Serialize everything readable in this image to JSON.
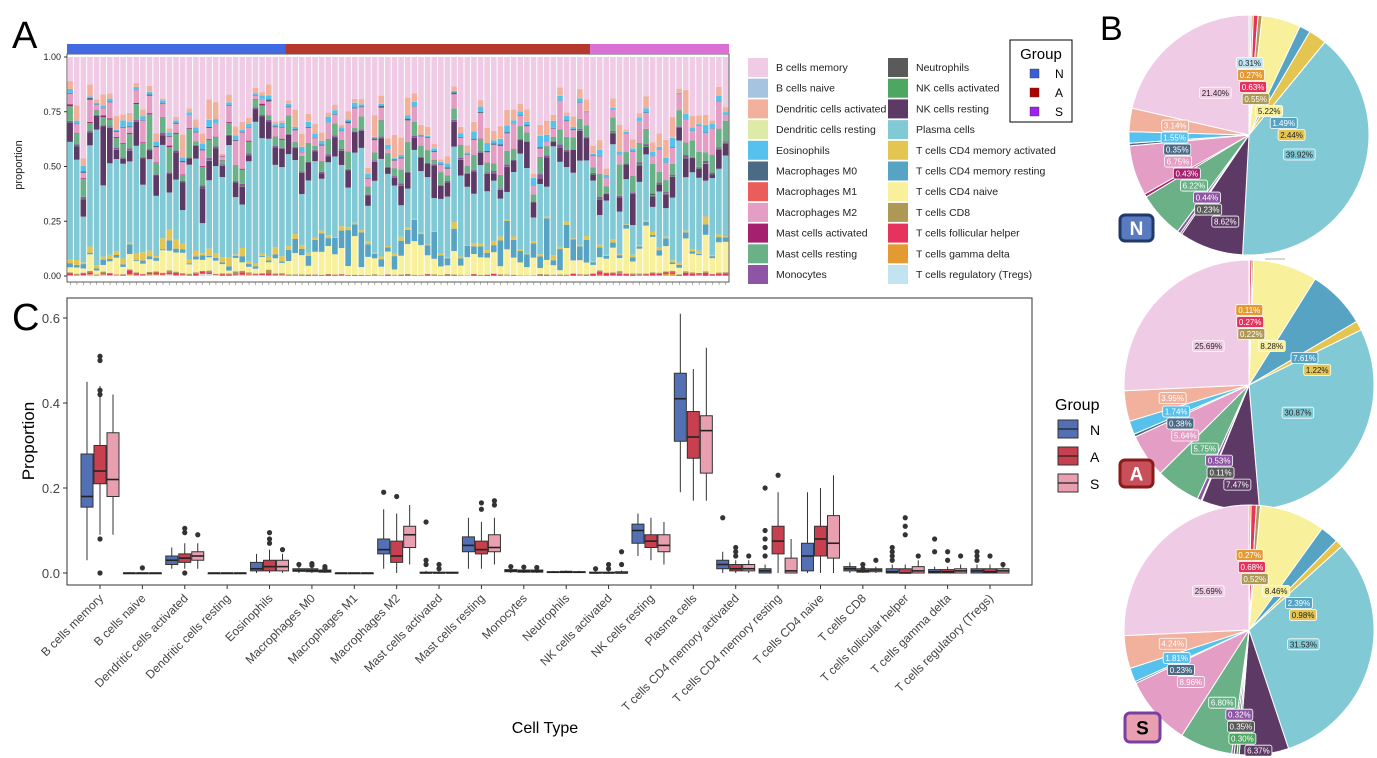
{
  "panel_letters": {
    "a": "A",
    "b": "B",
    "c": "C"
  },
  "cell_types": [
    "B cells memory",
    "B cells naive",
    "Dendritic cells activated",
    "Dendritic cells resting",
    "Eosinophils",
    "Macrophages M0",
    "Macrophages M1",
    "Macrophages M2",
    "Mast cells activated",
    "Mast cells resting",
    "Monocytes",
    "Neutrophils",
    "NK cells activated",
    "NK cells resting",
    "Plasma cells",
    "T cells CD4 memory activated",
    "T cells CD4 memory resting",
    "T cells CD4 naive",
    "T cells CD8",
    "T cells follicular helper",
    "T cells gamma delta",
    "T cells regulatory (Tregs)"
  ],
  "cell_colors": [
    "#F0CBE5",
    "#A6C3E0",
    "#F2B19C",
    "#DDEAA8",
    "#57C1EE",
    "#4B6A86",
    "#EB5D5B",
    "#E49DC4",
    "#A5206E",
    "#6AB187",
    "#8E55A5",
    "#5A5A5A",
    "#4EA760",
    "#5D3966",
    "#82C9D6",
    "#E4C552",
    "#56A3C4",
    "#F8F09A",
    "#AE9856",
    "#E5335E",
    "#E39A33",
    "#C2E3F0"
  ],
  "group_legend_a": {
    "title": "Group",
    "items": [
      {
        "label": "N",
        "color": "#3A5FD8"
      },
      {
        "label": "A",
        "color": "#B00000"
      },
      {
        "label": "S",
        "color": "#A020F0"
      }
    ]
  },
  "chart_data": [
    {
      "panel": "A",
      "type": "bar",
      "stacked": true,
      "ylabel": "proportion",
      "ylim": [
        0,
        1
      ],
      "yticks": [
        "0.00",
        "0.25",
        "0.50",
        "0.75",
        "1.00"
      ],
      "group_bar_colors": {
        "N": "#4169E1",
        "A": "#B5382C",
        "S": "#DA70D6"
      },
      "groups": [
        {
          "name": "N",
          "samples": 33
        },
        {
          "name": "A",
          "samples": 46
        },
        {
          "name": "S",
          "samples": 21
        }
      ],
      "legend_placement": "right"
    },
    {
      "panel": "B",
      "type": "pie",
      "pies": [
        {
          "group": "N",
          "badge_bg": "#5A7AC0",
          "badge_border": "#1F3A6A",
          "badge_text_color": "#ffffff",
          "values": {
            "B cells memory": 21.4,
            "Dendritic cells activated": 3.14,
            "Eosinophils": 1.55,
            "Macrophages M0": 0.35,
            "Macrophages M2": 6.75,
            "Mast cells activated": 0.43,
            "Mast cells resting": 6.22,
            "Monocytes": 0.44,
            "Neutrophils": 0.23,
            "NK cells resting": 8.62,
            "Plasma cells": 39.92,
            "T cells CD4 memory activated": 2.44,
            "T cells CD4 memory resting": 1.49,
            "T cells CD4 naive": 5.22,
            "T cells CD8": 0.55,
            "T cells follicular helper": 0.63,
            "T cells gamma delta": 0.27,
            "T cells regulatory (Tregs)": 0.31
          },
          "labels": {
            "B cells memory": "21.40%",
            "Dendritic cells activated": "3.14%",
            "Eosinophils": "1.55%",
            "Macrophages M0": "0.35%",
            "Macrophages M2": "6.75%",
            "Mast cells activated": "0.43%",
            "Mast cells resting": "6.22%",
            "Monocytes": "0.44%",
            "Neutrophils": "0.23%",
            "NK cells resting": "8.62%",
            "Plasma cells": "39.92%",
            "T cells CD4 memory activated": "2.44%",
            "T cells CD4 memory resting": "1.49%",
            "T cells CD4 naive": "5.22%",
            "T cells CD8": "0.55%",
            "T cells follicular helper": "0.63%",
            "T cells gamma delta": "0.27%",
            "T cells regulatory (Tregs)": "0.31%"
          }
        },
        {
          "group": "A",
          "badge_bg": "#C8505A",
          "badge_border": "#8B1A1A",
          "badge_text_color": "#ffffff",
          "values": {
            "B cells memory": 25.69,
            "Dendritic cells activated": 3.95,
            "Eosinophils": 1.74,
            "Macrophages M0": 0.38,
            "Macrophages M2": 5.64,
            "Mast cells resting": 5.75,
            "Monocytes": 0.53,
            "Neutrophils": 0.11,
            "NK cells resting": 7.47,
            "Plasma cells": 30.87,
            "T cells CD4 memory activated": 1.22,
            "T cells CD4 memory resting": 7.61,
            "T cells CD4 naive": 8.28,
            "T cells CD8": 0.22,
            "T cells follicular helper": 0.27,
            "T cells gamma delta": 0.11
          },
          "labels": {
            "B cells memory": "25.69%",
            "Dendritic cells activated": "3.95%",
            "Eosinophils": "1.74%",
            "Macrophages M0": "0.38%",
            "Macrophages M2": "5.64%",
            "Mast cells resting": "5.75%",
            "Monocytes": "0.53%",
            "Neutrophils": "0.11%",
            "NK cells resting": "7.47%",
            "Plasma cells": "30.87%",
            "T cells CD4 memory activated": "1.22%",
            "T cells CD4 memory resting": "7.61%",
            "T cells CD4 naive": "8.28%",
            "T cells CD8": "0.22%",
            "T cells follicular helper": "0.27%",
            "T cells gamma delta": "0.11%"
          }
        },
        {
          "group": "S",
          "badge_bg": "#E8A0B0",
          "badge_border": "#7B3FA0",
          "badge_text_color": "#000000",
          "values": {
            "B cells memory": 25.69,
            "Dendritic cells activated": 4.24,
            "Eosinophils": 1.81,
            "Macrophages M0": 0.23,
            "Macrophages M2": 8.96,
            "Mast cells resting": 6.8,
            "Monocytes": 0.32,
            "Neutrophils": 0.35,
            "NK cells activated": 0.3,
            "NK cells resting": 6.37,
            "Plasma cells": 31.53,
            "T cells CD4 memory activated": 0.98,
            "T cells CD4 memory resting": 2.39,
            "T cells CD4 naive": 8.46,
            "T cells CD8": 0.52,
            "T cells follicular helper": 0.68,
            "T cells gamma delta": 0.27
          },
          "labels": {
            "B cells memory": "25.69%",
            "Dendritic cells activated": "4.24%",
            "Eosinophils": "1.81%",
            "Macrophages M0": "0.23%",
            "Macrophages M2": "8.96%",
            "Mast cells resting": "6.80%",
            "Monocytes": "0.32%",
            "Neutrophils": "0.35%",
            "NK cells activated": "0.30%",
            "NK cells resting": "6.37%",
            "Plasma cells": "31.53%",
            "T cells CD4 memory activated": "0.98%",
            "T cells CD4 memory resting": "2.39%",
            "T cells CD4 naive": "8.46%",
            "T cells CD8": "0.52%",
            "T cells follicular helper": "0.68%",
            "T cells gamma delta": "0.27%"
          }
        }
      ]
    },
    {
      "panel": "C",
      "type": "box",
      "xlabel": "Cell Type",
      "ylabel": "Proportion",
      "ylim": [
        0,
        0.62
      ],
      "yticks": [
        "0.0",
        "0.2",
        "0.4",
        "0.6"
      ],
      "legend": {
        "title": "Group",
        "placement": "right",
        "items": [
          {
            "label": "N",
            "color": "#5470B4"
          },
          {
            "label": "A",
            "color": "#C8404F"
          },
          {
            "label": "S",
            "color": "#E8A0B0"
          }
        ]
      },
      "boxes_format": "[whisker_low, q1, median, q3, whisker_high, [outliers]]",
      "boxes": [
        {
          "N": [
            0.03,
            0.155,
            0.18,
            0.28,
            0.45,
            []
          ],
          "A": [
            0.09,
            0.21,
            0.24,
            0.3,
            0.44,
            [
              0.51,
              0.5,
              0.43,
              0.42,
              0.08,
              0.0
            ]
          ],
          "S": [
            0.09,
            0.18,
            0.22,
            0.33,
            0.42,
            []
          ]
        },
        {
          "N": [
            0,
            0,
            0,
            0,
            0,
            []
          ],
          "A": [
            0,
            0,
            0,
            0,
            0,
            [
              0.012
            ]
          ],
          "S": [
            0,
            0,
            0,
            0,
            0,
            []
          ]
        },
        {
          "N": [
            0.01,
            0.02,
            0.03,
            0.04,
            0.06,
            []
          ],
          "A": [
            0.01,
            0.025,
            0.035,
            0.045,
            0.07,
            [
              0.105,
              0.095,
              0.0
            ]
          ],
          "S": [
            0.01,
            0.03,
            0.04,
            0.05,
            0.07,
            [
              0.09
            ]
          ]
        },
        {
          "N": [
            0,
            0,
            0,
            0,
            0,
            []
          ],
          "A": [
            0,
            0,
            0,
            0,
            0,
            []
          ],
          "S": [
            0,
            0,
            0,
            0,
            0,
            []
          ]
        },
        {
          "N": [
            0,
            0.005,
            0.01,
            0.025,
            0.045,
            []
          ],
          "A": [
            0,
            0.005,
            0.015,
            0.03,
            0.055,
            [
              0.095,
              0.08,
              0.07
            ]
          ],
          "S": [
            0,
            0.005,
            0.015,
            0.03,
            0.045,
            [
              0.055
            ]
          ]
        },
        {
          "N": [
            0,
            0.004,
            0.006,
            0.01,
            0.015,
            [
              0.02
            ]
          ],
          "A": [
            0,
            0.003,
            0.006,
            0.01,
            0.015,
            [
              0.022,
              0.018
            ]
          ],
          "S": [
            0,
            0.002,
            0.004,
            0.007,
            0.01,
            [
              0.015,
              0.01
            ]
          ]
        },
        {
          "N": [
            0,
            0,
            0,
            0,
            0,
            []
          ],
          "A": [
            0,
            0,
            0,
            0,
            0,
            []
          ],
          "S": [
            0,
            0,
            0,
            0,
            0,
            []
          ]
        },
        {
          "N": [
            0.01,
            0.045,
            0.055,
            0.08,
            0.15,
            [
              0.19
            ]
          ],
          "A": [
            0,
            0.025,
            0.04,
            0.075,
            0.14,
            [
              0.18
            ]
          ],
          "S": [
            0.02,
            0.06,
            0.09,
            0.11,
            0.16,
            []
          ]
        },
        {
          "N": [
            0,
            0,
            0,
            0.002,
            0.005,
            [
              0.12,
              0.03,
              0.02
            ]
          ],
          "A": [
            0,
            0,
            0,
            0.002,
            0.004,
            [
              0.02,
              0.01
            ]
          ],
          "S": [
            0,
            0,
            0,
            0.002,
            0.003,
            []
          ]
        },
        {
          "N": [
            0.01,
            0.05,
            0.065,
            0.085,
            0.13,
            []
          ],
          "A": [
            0.01,
            0.045,
            0.055,
            0.075,
            0.12,
            [
              0.165,
              0.15
            ]
          ],
          "S": [
            0.02,
            0.05,
            0.06,
            0.09,
            0.13,
            [
              0.17,
              0.16
            ]
          ]
        },
        {
          "N": [
            0,
            0.003,
            0.005,
            0.008,
            0.012,
            [
              0.015
            ]
          ],
          "A": [
            0,
            0.002,
            0.004,
            0.007,
            0.01,
            [
              0.014
            ]
          ],
          "S": [
            0,
            0.002,
            0.004,
            0.007,
            0.01,
            [
              0.013
            ]
          ]
        },
        {
          "N": [
            0,
            0.001,
            0.002,
            0.003,
            0.005,
            []
          ],
          "A": [
            0,
            0.001,
            0.002,
            0.004,
            0.006,
            []
          ],
          "S": [
            0,
            0.001,
            0.002,
            0.003,
            0.005,
            []
          ]
        },
        {
          "N": [
            0,
            0,
            0,
            0.002,
            0.004,
            [
              0.01
            ]
          ],
          "A": [
            0,
            0,
            0,
            0.002,
            0.004,
            [
              0.02,
              0.01
            ]
          ],
          "S": [
            0,
            0,
            0,
            0.003,
            0.006,
            [
              0.05,
              0.02
            ]
          ]
        },
        {
          "N": [
            0.04,
            0.07,
            0.1,
            0.115,
            0.14,
            []
          ],
          "A": [
            0.03,
            0.06,
            0.075,
            0.09,
            0.13,
            []
          ],
          "S": [
            0.02,
            0.05,
            0.065,
            0.09,
            0.12,
            []
          ]
        },
        {
          "N": [
            0.19,
            0.31,
            0.41,
            0.47,
            0.61,
            []
          ],
          "A": [
            0.17,
            0.27,
            0.32,
            0.38,
            0.48,
            []
          ],
          "S": [
            0.17,
            0.235,
            0.335,
            0.37,
            0.53,
            []
          ]
        },
        {
          "N": [
            0,
            0.01,
            0.02,
            0.03,
            0.05,
            [
              0.13
            ]
          ],
          "A": [
            0,
            0.005,
            0.01,
            0.02,
            0.03,
            [
              0.06,
              0.05,
              0.04
            ]
          ],
          "S": [
            0,
            0.005,
            0.01,
            0.02,
            0.03,
            [
              0.04
            ]
          ]
        },
        {
          "N": [
            0,
            0,
            0.005,
            0.01,
            0.02,
            [
              0.2,
              0.1,
              0.08,
              0.06,
              0.04
            ]
          ],
          "A": [
            0,
            0.045,
            0.075,
            0.11,
            0.19,
            [
              0.23
            ]
          ],
          "S": [
            0,
            0,
            0.005,
            0.035,
            0.08,
            []
          ]
        },
        {
          "N": [
            0,
            0.005,
            0.04,
            0.07,
            0.19,
            []
          ],
          "A": [
            0,
            0.04,
            0.08,
            0.11,
            0.2,
            []
          ],
          "S": [
            0,
            0.035,
            0.07,
            0.135,
            0.23,
            []
          ]
        },
        {
          "N": [
            0,
            0.005,
            0.01,
            0.015,
            0.025,
            []
          ],
          "A": [
            0,
            0.002,
            0.005,
            0.01,
            0.015,
            [
              0.02,
              0.01
            ]
          ],
          "S": [
            0,
            0.003,
            0.007,
            0.01,
            0.015,
            [
              0.03
            ]
          ]
        },
        {
          "N": [
            0,
            0,
            0.003,
            0.01,
            0.02,
            [
              0.06,
              0.05,
              0.04,
              0.03
            ]
          ],
          "A": [
            0,
            0,
            0,
            0.01,
            0.02,
            [
              0.13,
              0.11,
              0.09
            ]
          ],
          "S": [
            0,
            0,
            0.005,
            0.015,
            0.03,
            [
              0.04
            ]
          ]
        },
        {
          "N": [
            0,
            0,
            0.003,
            0.008,
            0.015,
            [
              0.08,
              0.05
            ]
          ],
          "A": [
            0,
            0,
            0.003,
            0.008,
            0.015,
            [
              0.05,
              0.03
            ]
          ],
          "S": [
            0,
            0,
            0.005,
            0.01,
            0.02,
            [
              0.04
            ]
          ]
        },
        {
          "N": [
            0,
            0,
            0.005,
            0.01,
            0.02,
            [
              0.05,
              0.04,
              0.03
            ]
          ],
          "A": [
            0,
            0,
            0.003,
            0.01,
            0.02,
            [
              0.04
            ]
          ],
          "S": [
            0,
            0,
            0.005,
            0.01,
            0.015,
            [
              0.02
            ]
          ]
        }
      ]
    }
  ]
}
